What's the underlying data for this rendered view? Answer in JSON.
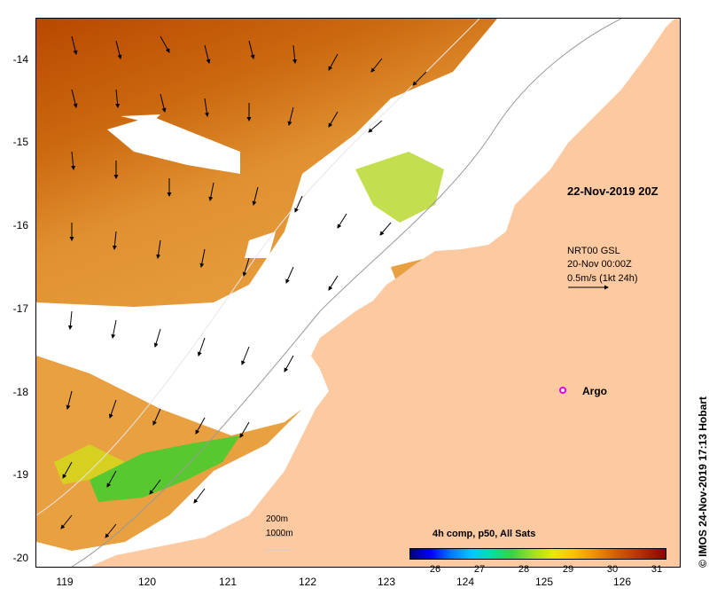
{
  "map": {
    "timestamp": "22-Nov-2019 20Z",
    "current_info": {
      "line1": "NRT00 GSL",
      "line2": "20-Nov 00:00Z",
      "line3": "0.5m/s (1kt 24h)"
    },
    "argo_label": "Argo",
    "credit": "© IMOS 24-Nov-2019 17:13 Hobart",
    "y_ticks": [
      "-14",
      "-15",
      "-16",
      "-17",
      "-18",
      "-19",
      "-20"
    ],
    "x_ticks": [
      "119",
      "120",
      "121",
      "122",
      "123",
      "124",
      "125",
      "126"
    ],
    "depth_contours": {
      "label_1": "200m",
      "label_2": "1000m"
    },
    "legend": {
      "title": "4h comp, p50, All Sats",
      "ticks": [
        "26",
        "27",
        "28",
        "29",
        "30",
        "31"
      ]
    },
    "colors": {
      "land": "#fcc9a0",
      "no_data": "#ffffff",
      "argo_marker": "#e000e0"
    }
  }
}
